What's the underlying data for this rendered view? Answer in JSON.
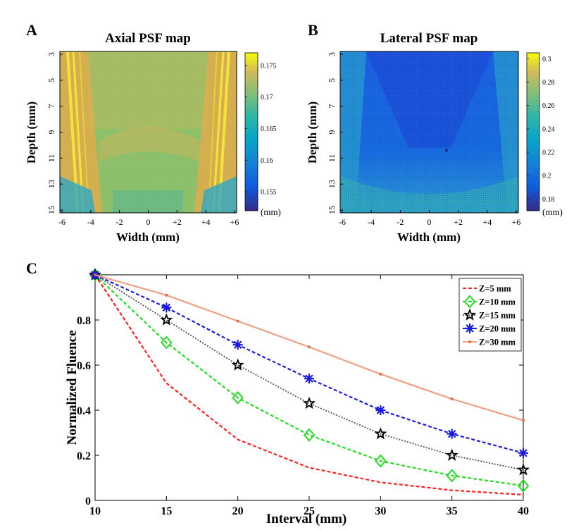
{
  "panels": {
    "a": {
      "letter": "A",
      "title": "Axial PSF map",
      "xlabel": "Width (mm)",
      "ylabel": "Depth (mm)",
      "x_ticks": [
        "-6",
        "-4",
        "-2",
        "0",
        "+2",
        "+4",
        "+6"
      ],
      "y_ticks": [
        "3",
        "5",
        "7",
        "9",
        "11",
        "13",
        "15"
      ],
      "colorbar_ticks": [
        "0.175",
        "0.17",
        "0.165",
        "0.16",
        "0.155"
      ],
      "colorbar_unit": "(mm)"
    },
    "b": {
      "letter": "B",
      "title": "Lateral PSF map",
      "xlabel": "Width (mm)",
      "ylabel": "Depth (mm)",
      "x_ticks": [
        "-6",
        "-4",
        "-2",
        "0",
        "+2",
        "+4",
        "+6"
      ],
      "y_ticks": [
        "3",
        "5",
        "7",
        "9",
        "11",
        "13",
        "15"
      ],
      "colorbar_ticks": [
        "0.3",
        "0.28",
        "0.26",
        "0.24",
        "0.22",
        "0.2",
        "0.18"
      ],
      "colorbar_unit": "(mm)"
    },
    "c": {
      "letter": "C"
    }
  },
  "chart_data": [
    {
      "type": "heatmap",
      "title": "Axial PSF map",
      "xlabel": "Width (mm)",
      "ylabel": "Depth (mm)",
      "xlim": [
        -6,
        6
      ],
      "ylim": [
        3,
        15
      ],
      "colorbar_range": [
        0.152,
        0.177
      ],
      "colormap": "parula",
      "description": "Mostly ~0.165-0.17 mm; bright (~0.175) diagonal streaks near both lateral edges; lower values (~0.16) in the bottom corners."
    },
    {
      "type": "heatmap",
      "title": "Lateral PSF map",
      "xlabel": "Width (mm)",
      "ylabel": "Depth (mm)",
      "xlim": [
        -6,
        6
      ],
      "ylim": [
        3,
        15
      ],
      "colorbar_range": [
        0.17,
        0.305
      ],
      "colormap": "parula",
      "description": "Low (~0.19-0.2 mm) V-shaped central region, rising to ~0.22-0.24 mm at lateral edges and greater depth."
    },
    {
      "type": "line",
      "xlabel": "Interval (mm)",
      "ylabel": "Normalized Fluence",
      "x": [
        10,
        15,
        20,
        25,
        30,
        35,
        40
      ],
      "xlim": [
        10,
        40
      ],
      "ylim": [
        0,
        1
      ],
      "x_ticks": [
        "10",
        "15",
        "20",
        "25",
        "30",
        "35",
        "40"
      ],
      "y_ticks": [
        "0",
        "0.2",
        "0.4",
        "0.6",
        "0.8"
      ],
      "legend_position": "top-right",
      "grid": false,
      "series": [
        {
          "name": "Z=5 mm",
          "color": "#ff2020",
          "marker": "none",
          "dash": "5,3",
          "values": [
            1.0,
            0.52,
            0.27,
            0.145,
            0.08,
            0.045,
            0.025
          ]
        },
        {
          "name": "Z=10 mm",
          "color": "#22dd22",
          "marker": "diamond",
          "dash": "5,3",
          "values": [
            1.0,
            0.7,
            0.455,
            0.29,
            0.175,
            0.11,
            0.065
          ]
        },
        {
          "name": "Z=15 mm",
          "color": "#555555",
          "marker": "star",
          "dash": "2,2",
          "values": [
            1.0,
            0.8,
            0.6,
            0.43,
            0.295,
            0.2,
            0.135
          ]
        },
        {
          "name": "Z=20 mm",
          "color": "#1a1ae0",
          "marker": "asterisk",
          "dash": "5,3",
          "values": [
            1.0,
            0.855,
            0.69,
            0.54,
            0.4,
            0.295,
            0.21
          ]
        },
        {
          "name": "Z=30 mm",
          "color": "#f0a080",
          "marker": "dot",
          "dash": "",
          "values": [
            1.0,
            0.91,
            0.795,
            0.68,
            0.56,
            0.45,
            0.355
          ]
        }
      ]
    }
  ]
}
